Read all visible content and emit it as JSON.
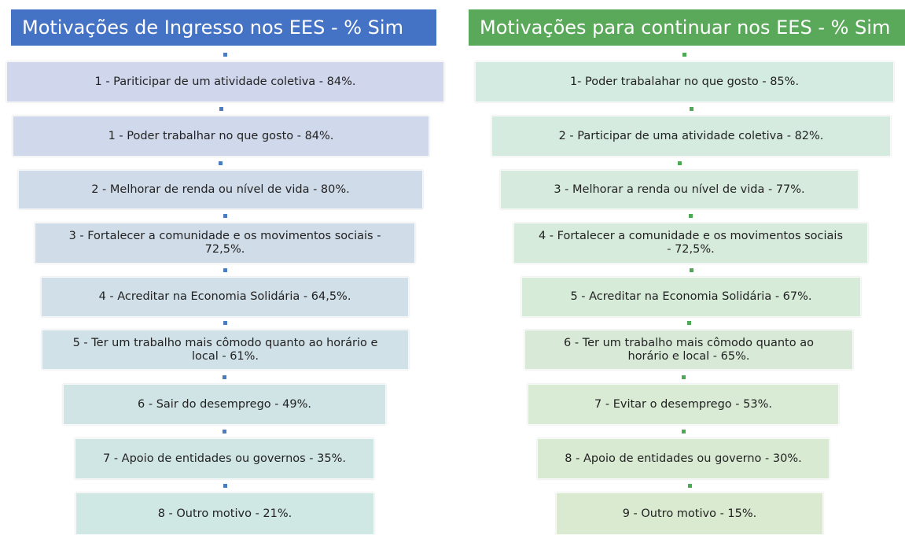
{
  "columns": [
    {
      "title": "Motivações de Ingresso nos EES - % Sim",
      "items": [
        "1 - Pariticipar de um atividade coletiva - 84%.",
        "1 - Poder trabalhar no que gosto - 84%.",
        "2 - Melhorar de renda ou nível de vida - 80%.",
        "3 - Fortalecer a comunidade e os movimentos sociais - 72,5%.",
        "4 - Acreditar na Economia Solidária - 64,5%.",
        "5 - Ter um trabalho mais cômodo quanto ao horário e local - 61%.",
        "6 - Sair do desemprego - 49%.",
        "7 - Apoio de entidades ou governos - 35%.",
        "8 - Outro motivo - 21%."
      ]
    },
    {
      "title": "Motivações para continuar nos EES - % Sim",
      "items": [
        "1- Poder trabalahar no que gosto - 85%.",
        "2 - Participar de uma atividade coletiva - 82%.",
        "3 - Melhorar a renda ou nível de vida - 77%.",
        "4 - Fortalecer a comunidade e os movimentos sociais - 72,5%.",
        "5 - Acreditar na Economia Solidária - 67%.",
        "6 - Ter um trabalho mais cômodo quanto ao horário e local - 65%.",
        "7 - Evitar o desemprego - 53%.",
        "8 - Apoio de entidades ou governo - 30%.",
        "9 - Outro motivo - 15%."
      ]
    }
  ]
}
